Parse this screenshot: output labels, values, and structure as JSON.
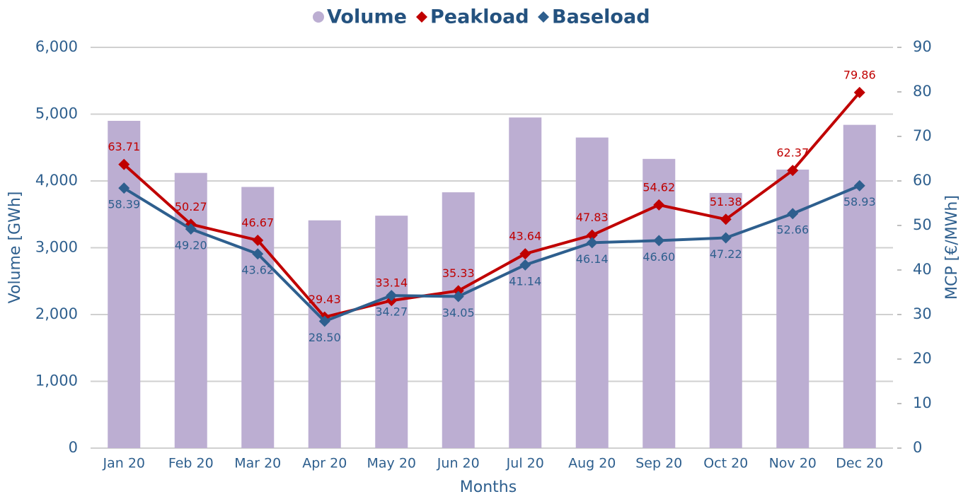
{
  "chart_data": {
    "type": "combo",
    "xlabel": "Months",
    "ylabel": "Volume [GWh]",
    "y2label": "MCP [€/MWh]",
    "categories": [
      "Jan 20",
      "Feb 20",
      "Mar 20",
      "Apr 20",
      "May 20",
      "Jun 20",
      "Jul 20",
      "Aug 20",
      "Sep 20",
      "Oct 20",
      "Nov 20",
      "Dec 20"
    ],
    "series": [
      {
        "name": "Volume",
        "type": "bar",
        "color": "#bcaed2",
        "axis": "y",
        "values": [
          4900,
          4120,
          3910,
          3410,
          3480,
          3830,
          4950,
          4650,
          4330,
          3820,
          4170,
          4840
        ]
      },
      {
        "name": "Peakload",
        "type": "line",
        "color": "#c00000",
        "axis": "y2",
        "values": [
          63.71,
          50.27,
          46.67,
          29.43,
          33.14,
          35.33,
          43.64,
          47.83,
          54.62,
          51.38,
          62.37,
          79.86
        ],
        "value_labels": [
          "63.71",
          "50.27",
          "46.67",
          "29.43",
          "33.14",
          "35.33",
          "43.64",
          "47.83",
          "54.62",
          "51.38",
          "62.37",
          "79.86"
        ]
      },
      {
        "name": "Baseload",
        "type": "line",
        "color": "#2e5f8e",
        "axis": "y2",
        "values": [
          58.39,
          49.2,
          43.62,
          28.5,
          34.27,
          34.05,
          41.14,
          46.14,
          46.6,
          47.22,
          52.66,
          58.93
        ],
        "value_labels": [
          "58.39",
          "49.20",
          "43.62",
          "28.50",
          "34.27",
          "34.05",
          "41.14",
          "46.14",
          "46.60",
          "47.22",
          "52.66",
          "58.93"
        ]
      }
    ],
    "ylim": [
      0,
      6000
    ],
    "yticks": [
      0,
      {
        "value": 1000,
        "label": "1,000"
      },
      {
        "value": 2000,
        "label": "2,000"
      },
      {
        "value": 3000,
        "label": "3,000"
      },
      {
        "value": 4000,
        "label": "4,000"
      },
      {
        "value": 5000,
        "label": "5,000"
      },
      {
        "value": 6000,
        "label": "6,000"
      }
    ],
    "y2lim": [
      0,
      90
    ],
    "y2ticks": [
      0,
      10,
      20,
      30,
      40,
      50,
      60,
      70,
      80,
      90
    ],
    "grid": true,
    "legend": "top"
  }
}
